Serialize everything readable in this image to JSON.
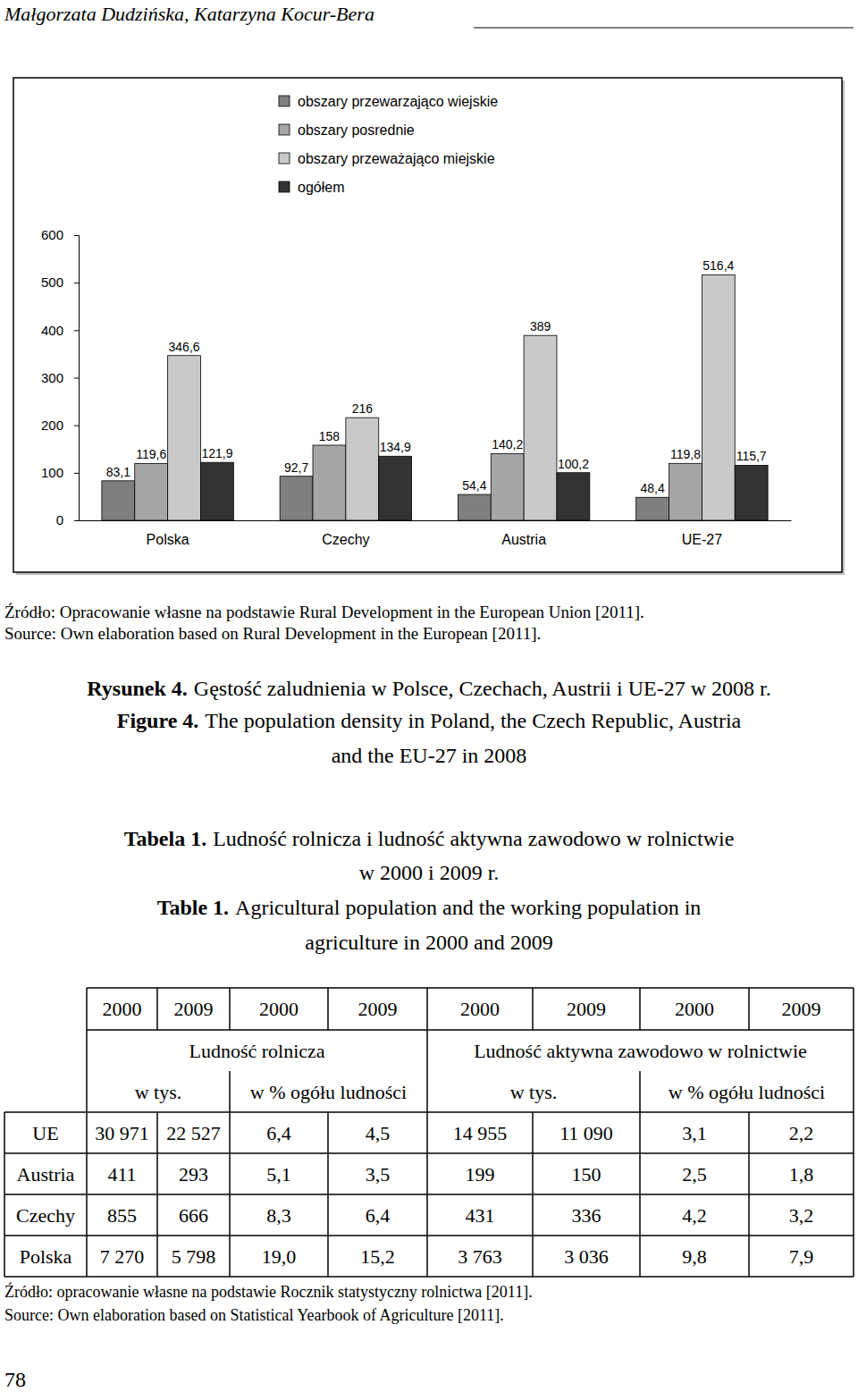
{
  "header": {
    "authors": "Małgorzata Dudzińska, Katarzyna Kocur-Bera"
  },
  "chart_data": {
    "type": "bar",
    "categories": [
      "Polska",
      "Czechy",
      "Austria",
      "UE-27"
    ],
    "series": [
      {
        "name": "obszary przewarzająco wiejskie",
        "color": "#7f7f7f",
        "values": [
          83.1,
          92.7,
          54.4,
          48.4
        ],
        "value_labels": [
          "83,1",
          "92,7",
          "54,4",
          "48,4"
        ]
      },
      {
        "name": "obszary posrednie",
        "color": "#a6a6a6",
        "values": [
          119.6,
          158,
          140.2,
          119.8
        ],
        "value_labels": [
          "119,6",
          "158",
          "140,2",
          "119,8"
        ]
      },
      {
        "name": "obszary przeważająco miejskie",
        "color": "#c9c9c9",
        "values": [
          346.6,
          216,
          389,
          516.4
        ],
        "value_labels": [
          "346,6",
          "216",
          "389",
          "516,4"
        ]
      },
      {
        "name": "ogółem",
        "color": "#333333",
        "values": [
          121.9,
          134.9,
          100.2,
          115.7
        ],
        "value_labels": [
          "121,9",
          "134,9",
          "100,2",
          "115,7"
        ]
      }
    ],
    "ylim": [
      0,
      600
    ],
    "yticks": [
      0,
      100,
      200,
      300,
      400,
      500,
      600
    ],
    "grid": false,
    "legend": "top",
    "data_labels": true
  },
  "figure_source": [
    "Źródło: Opracowanie własne na podstawie Rural Development in the European Union [2011].",
    "Source: Own elaboration based on Rural Development in the European [2011]."
  ],
  "figure_caption": {
    "pl_label": "Rysunek 4.",
    "pl_text": "Gęstość zaludnienia w Polsce, Czechach, Austrii i UE-27 w 2008 r.",
    "en_label": "Figure 4.",
    "en_text_lines": [
      "The population density in Poland, the Czech Republic, Austria",
      "and the EU-27 in 2008"
    ]
  },
  "table_caption": {
    "pl_label": "Tabela 1.",
    "pl_text_lines": [
      "Ludność rolnicza i ludność aktywna zawodowo w rolnictwie",
      "w 2000 i 2009 r."
    ],
    "en_label": "Table 1.",
    "en_text_lines": [
      "Agricultural population and the working population in",
      "agriculture in 2000 and 2009"
    ]
  },
  "table": {
    "years": [
      "2000",
      "2009",
      "2000",
      "2009",
      "2000",
      "2009",
      "2000",
      "2009"
    ],
    "groups": [
      "Ludność rolnicza",
      "Ludność aktywna zawodowo w rolnictwie"
    ],
    "units": [
      "w tys.",
      "w % ogółu ludności",
      "w tys.",
      "w % ogółu ludności"
    ],
    "rows": [
      [
        "UE",
        "30 971",
        "22 527",
        "6,4",
        "4,5",
        "14 955",
        "11 090",
        "3,1",
        "2,2"
      ],
      [
        "Austria",
        "411",
        "293",
        "5,1",
        "3,5",
        "199",
        "150",
        "2,5",
        "1,8"
      ],
      [
        "Czechy",
        "855",
        "666",
        "8,3",
        "6,4",
        "431",
        "336",
        "4,2",
        "3,2"
      ],
      [
        "Polska",
        "7 270",
        "5 798",
        "19,0",
        "15,2",
        "3 763",
        "3 036",
        "9,8",
        "7,9"
      ]
    ]
  },
  "table_source": [
    "Źródło: opracowanie własne na podstawie Rocznik statystyczny rolnictwa [2011].",
    "Source: Own elaboration based on Statistical Yearbook of Agriculture [2011]."
  ],
  "page_number": "78"
}
